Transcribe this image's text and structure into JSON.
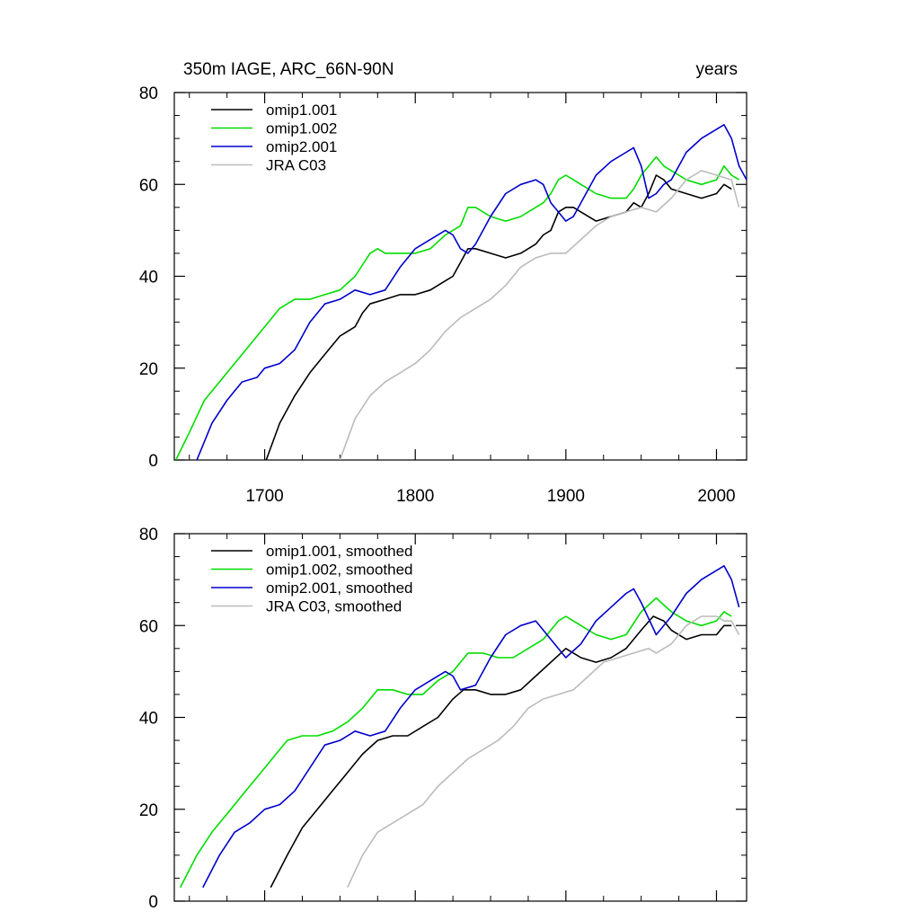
{
  "chart_data": [
    {
      "type": "line",
      "title": "350m IAGE, ARC_66N-90N",
      "title_right": "years",
      "xlabel": "",
      "ylabel": "",
      "xlim": [
        1640,
        2020
      ],
      "ylim": [
        0,
        80
      ],
      "xticks": [
        1700,
        1800,
        1900,
        2000
      ],
      "xtick_labels": [
        "1700",
        "1800",
        "1900",
        "2000"
      ],
      "yticks": [
        0,
        20,
        40,
        60,
        80
      ],
      "ytick_labels": [
        "0",
        "20",
        "40",
        "60",
        "80"
      ],
      "legend_position": "top-left",
      "series": [
        {
          "name": "omip1.001",
          "color": "#000000",
          "x": [
            1701,
            1710,
            1720,
            1730,
            1740,
            1750,
            1760,
            1765,
            1770,
            1780,
            1790,
            1800,
            1810,
            1820,
            1825,
            1830,
            1835,
            1840,
            1850,
            1860,
            1870,
            1880,
            1885,
            1890,
            1895,
            1900,
            1905,
            1910,
            1920,
            1930,
            1940,
            1945,
            1950,
            1955,
            1960,
            1965,
            1970,
            1980,
            1990,
            2000,
            2005,
            2010
          ],
          "y": [
            0,
            8,
            14,
            19,
            23,
            27,
            29,
            32,
            34,
            35,
            36,
            36,
            37,
            39,
            40,
            43,
            46,
            46,
            45,
            44,
            45,
            47,
            49,
            50,
            54,
            55,
            55,
            54,
            52,
            53,
            54,
            56,
            55,
            58,
            62,
            61,
            59,
            58,
            57,
            58,
            60,
            59
          ]
        },
        {
          "name": "omip1.002",
          "color": "#00dd00",
          "x": [
            1641,
            1650,
            1660,
            1670,
            1680,
            1690,
            1700,
            1710,
            1720,
            1730,
            1740,
            1750,
            1760,
            1770,
            1775,
            1780,
            1790,
            1800,
            1810,
            1820,
            1830,
            1835,
            1840,
            1850,
            1860,
            1870,
            1880,
            1885,
            1890,
            1895,
            1900,
            1905,
            1910,
            1920,
            1930,
            1940,
            1945,
            1950,
            1960,
            1965,
            1970,
            1975,
            1980,
            1990,
            2000,
            2005,
            2010,
            2015
          ],
          "y": [
            0,
            6,
            13,
            17,
            21,
            25,
            29,
            33,
            35,
            35,
            36,
            37,
            40,
            45,
            46,
            45,
            45,
            45,
            46,
            49,
            51,
            55,
            55,
            53,
            52,
            53,
            55,
            56,
            58,
            61,
            62,
            61,
            60,
            58,
            57,
            57,
            59,
            62,
            66,
            64,
            63,
            62,
            61,
            60,
            61,
            64,
            62,
            61
          ]
        },
        {
          "name": "omip2.001",
          "color": "#0000cc",
          "x": [
            1655,
            1665,
            1675,
            1685,
            1695,
            1700,
            1710,
            1720,
            1730,
            1740,
            1750,
            1760,
            1770,
            1780,
            1790,
            1800,
            1810,
            1820,
            1825,
            1830,
            1835,
            1840,
            1850,
            1860,
            1870,
            1880,
            1885,
            1890,
            1895,
            1900,
            1905,
            1910,
            1920,
            1930,
            1940,
            1945,
            1950,
            1955,
            1960,
            1965,
            1970,
            1980,
            1990,
            2000,
            2005,
            2010,
            2015,
            2020
          ],
          "y": [
            0,
            8,
            13,
            17,
            18,
            20,
            21,
            24,
            30,
            34,
            35,
            37,
            36,
            37,
            42,
            46,
            48,
            50,
            49,
            46,
            45,
            47,
            53,
            58,
            60,
            61,
            60,
            56,
            54,
            52,
            53,
            56,
            62,
            65,
            67,
            68,
            64,
            57,
            58,
            60,
            61,
            67,
            70,
            72,
            73,
            70,
            64,
            61
          ]
        },
        {
          "name": "JRA C03",
          "color": "#bbbbbb",
          "x": [
            1750,
            1760,
            1770,
            1780,
            1790,
            1800,
            1810,
            1820,
            1830,
            1840,
            1850,
            1860,
            1870,
            1880,
            1890,
            1900,
            1910,
            1920,
            1930,
            1940,
            1950,
            1960,
            1970,
            1980,
            1985,
            1990,
            2000,
            2010,
            2015
          ],
          "y": [
            0,
            9,
            14,
            17,
            19,
            21,
            24,
            28,
            31,
            33,
            35,
            38,
            42,
            44,
            45,
            45,
            48,
            51,
            53,
            54,
            55,
            54,
            57,
            61,
            62,
            63,
            62,
            61,
            55
          ]
        }
      ]
    },
    {
      "type": "line",
      "title": "",
      "xlabel": "",
      "ylabel": "",
      "xlim": [
        1640,
        2020
      ],
      "ylim": [
        0,
        80
      ],
      "xticks": [
        1700,
        1800,
        1900,
        2000
      ],
      "yticks": [
        0,
        20,
        40,
        60,
        80
      ],
      "ytick_labels": [
        "0",
        "20",
        "40",
        "60",
        "80"
      ],
      "legend_position": "top-left",
      "series": [
        {
          "name": "omip1.001, smoothed",
          "color": "#000000",
          "x": [
            1704,
            1715,
            1725,
            1735,
            1745,
            1755,
            1765,
            1775,
            1785,
            1795,
            1805,
            1815,
            1825,
            1832,
            1840,
            1850,
            1860,
            1870,
            1880,
            1890,
            1900,
            1910,
            1920,
            1930,
            1940,
            1950,
            1958,
            1965,
            1970,
            1980,
            1990,
            2000,
            2005,
            2010
          ],
          "y": [
            3,
            10,
            16,
            20,
            24,
            28,
            32,
            35,
            36,
            36,
            38,
            40,
            44,
            46,
            46,
            45,
            45,
            46,
            49,
            52,
            55,
            53,
            52,
            53,
            55,
            59,
            62,
            61,
            59,
            57,
            58,
            58,
            60,
            60
          ]
        },
        {
          "name": "omip1.002, smoothed",
          "color": "#00dd00",
          "x": [
            1644,
            1655,
            1665,
            1675,
            1685,
            1695,
            1705,
            1715,
            1725,
            1735,
            1745,
            1755,
            1765,
            1775,
            1785,
            1795,
            1805,
            1815,
            1825,
            1835,
            1845,
            1855,
            1865,
            1875,
            1885,
            1895,
            1900,
            1910,
            1920,
            1930,
            1940,
            1950,
            1960,
            1970,
            1980,
            1990,
            2000,
            2005,
            2010
          ],
          "y": [
            3,
            10,
            15,
            19,
            23,
            27,
            31,
            35,
            36,
            36,
            37,
            39,
            42,
            46,
            46,
            45,
            45,
            48,
            50,
            54,
            54,
            53,
            53,
            55,
            57,
            61,
            62,
            60,
            58,
            57,
            58,
            63,
            66,
            63,
            61,
            60,
            61,
            63,
            62
          ]
        },
        {
          "name": "omip2.001, smoothed",
          "color": "#0000cc",
          "x": [
            1659,
            1670,
            1680,
            1690,
            1700,
            1710,
            1720,
            1730,
            1740,
            1750,
            1760,
            1770,
            1780,
            1790,
            1800,
            1810,
            1820,
            1825,
            1830,
            1840,
            1850,
            1860,
            1870,
            1880,
            1890,
            1900,
            1910,
            1920,
            1930,
            1940,
            1945,
            1950,
            1960,
            1970,
            1980,
            1990,
            2000,
            2005,
            2010,
            2015
          ],
          "y": [
            3,
            10,
            15,
            17,
            20,
            21,
            24,
            29,
            34,
            35,
            37,
            36,
            37,
            42,
            46,
            48,
            50,
            49,
            46,
            47,
            53,
            58,
            60,
            61,
            57,
            53,
            56,
            61,
            64,
            67,
            68,
            65,
            58,
            62,
            67,
            70,
            72,
            73,
            70,
            64
          ]
        },
        {
          "name": "JRA C03, smoothed",
          "color": "#bbbbbb",
          "x": [
            1755,
            1765,
            1775,
            1785,
            1795,
            1805,
            1815,
            1825,
            1835,
            1845,
            1855,
            1865,
            1875,
            1885,
            1895,
            1905,
            1915,
            1925,
            1935,
            1945,
            1955,
            1960,
            1970,
            1980,
            1990,
            2000,
            2005,
            2010,
            2015
          ],
          "y": [
            3,
            10,
            15,
            17,
            19,
            21,
            25,
            28,
            31,
            33,
            35,
            38,
            42,
            44,
            45,
            46,
            49,
            52,
            53,
            54,
            55,
            54,
            56,
            60,
            62,
            62,
            61,
            61,
            58
          ]
        }
      ]
    }
  ]
}
